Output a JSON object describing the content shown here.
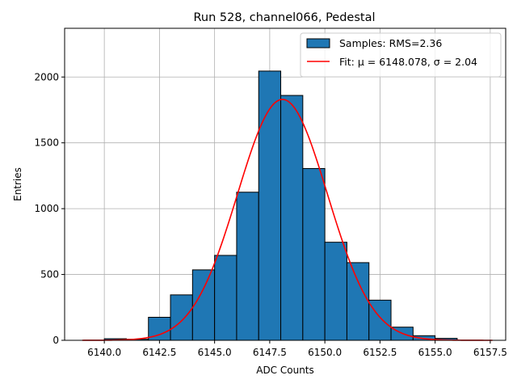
{
  "chart_data": {
    "type": "bar",
    "title": "Run 528, channel066, Pedestal",
    "xlabel": "ADC Counts",
    "ylabel": "Entries",
    "xlim": [
      6138.2,
      6158.2
    ],
    "ylim": [
      0,
      2370
    ],
    "grid": true,
    "legend_position": "top-right",
    "bin_width": 1,
    "bin_left_edges": [
      6140,
      6141,
      6142,
      6143,
      6144,
      6145,
      6146,
      6147,
      6148,
      6149,
      6150,
      6151,
      6152,
      6153,
      6154,
      6155
    ],
    "values": [
      12,
      8,
      175,
      345,
      535,
      645,
      1125,
      2045,
      1860,
      1305,
      745,
      590,
      305,
      100,
      35,
      15
    ],
    "xticks": [
      6140.0,
      6142.5,
      6145.0,
      6147.5,
      6150.0,
      6152.5,
      6155.0,
      6157.5
    ],
    "xtick_labels": [
      "6140.0",
      "6142.5",
      "6145.0",
      "6147.5",
      "6150.0",
      "6152.5",
      "6155.0",
      "6157.5"
    ],
    "yticks": [
      0,
      500,
      1000,
      1500,
      2000
    ],
    "ytick_labels": [
      "0",
      "500",
      "1000",
      "1500",
      "2000"
    ],
    "series": [
      {
        "name": "Samples: RMS=2.36",
        "kind": "histogram",
        "color": "#1f77b4",
        "edge_color": "#000000"
      },
      {
        "name": "Fit: μ = 6148.078, σ = 2.04",
        "kind": "gaussian-fit",
        "color": "#ff0000",
        "mu": 6148.078,
        "sigma": 2.04,
        "amplitude": 1830,
        "x_range": [
          6139,
          6157.6
        ]
      }
    ]
  }
}
